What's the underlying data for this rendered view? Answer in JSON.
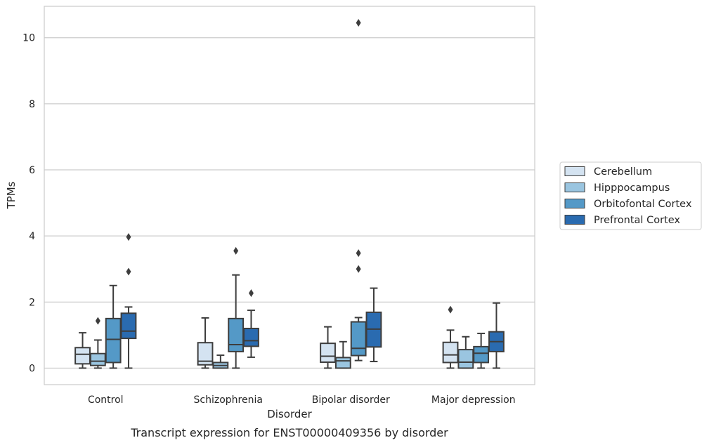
{
  "caption": "Transcript expression for ENST00000409356 by disorder",
  "chart_data": {
    "type": "box",
    "title": "",
    "xlabel": "Disorder",
    "ylabel": "TPMs",
    "ylim": [
      -0.5,
      10.95
    ],
    "yticks": [
      0,
      2,
      4,
      6,
      8,
      10
    ],
    "grid": "horizontal",
    "legend_position": "right",
    "categories": [
      "Control",
      "Schizophrenia",
      "Bipolar disorder",
      "Major depression"
    ],
    "series": [
      {
        "name": "Cerebellum",
        "color": "#d4e3f1",
        "boxes": [
          {
            "whislo": 0.0,
            "q1": 0.13,
            "med": 0.42,
            "q3": 0.62,
            "whishi": 1.07,
            "fliers": []
          },
          {
            "whislo": 0.0,
            "q1": 0.1,
            "med": 0.21,
            "q3": 0.77,
            "whishi": 1.52,
            "fliers": []
          },
          {
            "whislo": 0.0,
            "q1": 0.18,
            "med": 0.36,
            "q3": 0.75,
            "whishi": 1.25,
            "fliers": []
          },
          {
            "whislo": 0.0,
            "q1": 0.17,
            "med": 0.4,
            "q3": 0.78,
            "whishi": 1.15,
            "fliers": [
              1.77
            ]
          }
        ]
      },
      {
        "name": "Hipppocampus",
        "color": "#9ac5e0",
        "boxes": [
          {
            "whislo": 0.0,
            "q1": 0.08,
            "med": 0.21,
            "q3": 0.44,
            "whishi": 0.85,
            "fliers": [
              1.43
            ]
          },
          {
            "whislo": 0.0,
            "q1": 0.0,
            "med": 0.08,
            "q3": 0.17,
            "whishi": 0.39,
            "fliers": []
          },
          {
            "whislo": 0.0,
            "q1": 0.0,
            "med": 0.22,
            "q3": 0.32,
            "whishi": 0.8,
            "fliers": []
          },
          {
            "whislo": 0.0,
            "q1": 0.0,
            "med": 0.18,
            "q3": 0.56,
            "whishi": 0.95,
            "fliers": []
          }
        ]
      },
      {
        "name": "Orbitofontal Cortex",
        "color": "#5499c7",
        "boxes": [
          {
            "whislo": 0.0,
            "q1": 0.17,
            "med": 0.87,
            "q3": 1.5,
            "whishi": 2.5,
            "fliers": []
          },
          {
            "whislo": 0.0,
            "q1": 0.5,
            "med": 0.71,
            "q3": 1.5,
            "whishi": 2.82,
            "fliers": [
              3.55
            ]
          },
          {
            "whislo": 0.23,
            "q1": 0.38,
            "med": 0.6,
            "q3": 1.4,
            "whishi": 1.53,
            "fliers": [
              3.0,
              3.48,
              10.45
            ]
          },
          {
            "whislo": 0.0,
            "q1": 0.17,
            "med": 0.45,
            "q3": 0.65,
            "whishi": 1.05,
            "fliers": []
          }
        ]
      },
      {
        "name": "Prefrontal Cortex",
        "color": "#2a6bb0",
        "boxes": [
          {
            "whislo": 0.0,
            "q1": 0.9,
            "med": 1.12,
            "q3": 1.66,
            "whishi": 1.85,
            "fliers": [
              2.92,
              3.97
            ]
          },
          {
            "whislo": 0.33,
            "q1": 0.66,
            "med": 0.83,
            "q3": 1.2,
            "whishi": 1.75,
            "fliers": [
              2.27
            ]
          },
          {
            "whislo": 0.2,
            "q1": 0.64,
            "med": 1.18,
            "q3": 1.69,
            "whishi": 2.42,
            "fliers": []
          },
          {
            "whislo": 0.0,
            "q1": 0.5,
            "med": 0.8,
            "q3": 1.1,
            "whishi": 1.97,
            "fliers": []
          }
        ]
      }
    ]
  }
}
